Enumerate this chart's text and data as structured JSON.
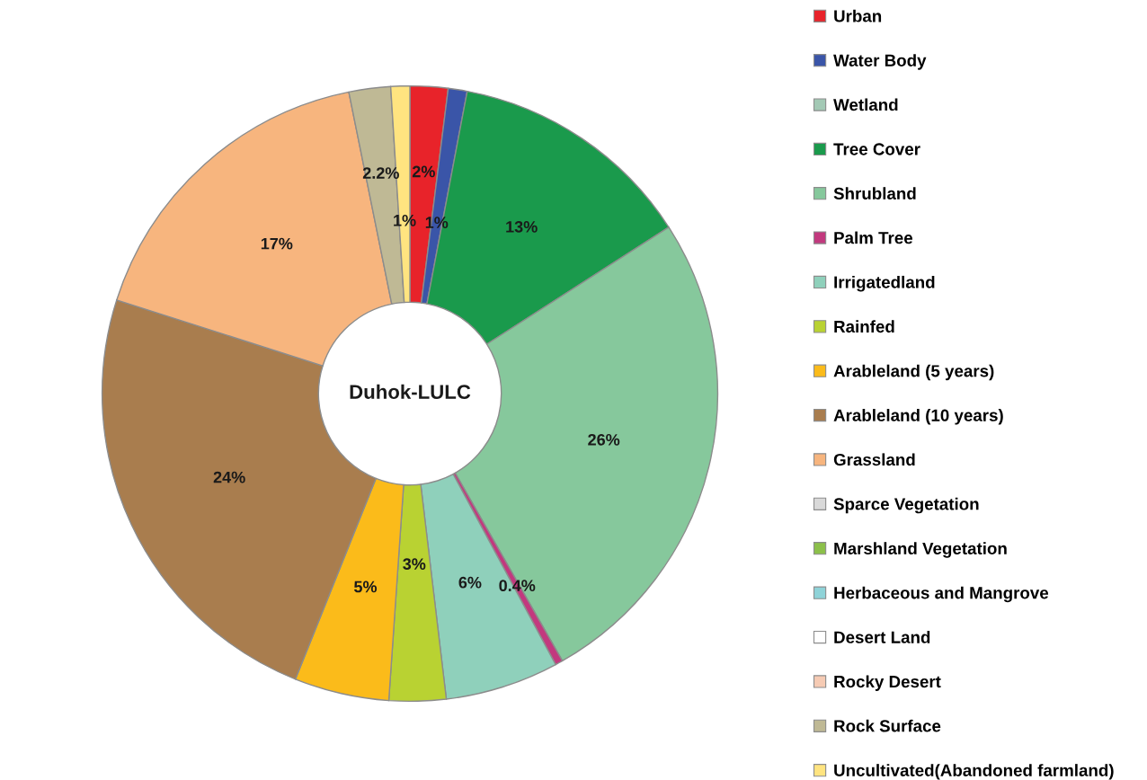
{
  "chart_data": {
    "type": "donut",
    "title": "Duhok-LULC",
    "categories": [
      "Urban",
      "Water Body",
      "Wetland",
      "Tree Cover",
      "Shrubland",
      "Palm Tree",
      "Irrigatedland",
      "Rainfed",
      "Arableland (5 years)",
      "Arableland (10 years)",
      "Grassland",
      "Sparce Vegetation",
      "Marshland Vegetation",
      "Herbaceous and Mangrove",
      "Desert Land",
      "Rocky Desert",
      "Rock Surface",
      "Uncultivated(Abandoned farmland)"
    ],
    "values": [
      2,
      1,
      null,
      13,
      26,
      0.4,
      6,
      3,
      5,
      24,
      17,
      null,
      null,
      null,
      null,
      null,
      2.2,
      1
    ],
    "value_labels": [
      "2%",
      "1%",
      null,
      "13%",
      "26%",
      "0.4%",
      "6%",
      "3%",
      "5%",
      "24%",
      "17%",
      null,
      null,
      null,
      null,
      null,
      "2.2%",
      "1%"
    ],
    "colors": [
      "#e8232a",
      "#3a55a8",
      "#a3c9b5",
      "#1a9a4c",
      "#86c89c",
      "#c2397e",
      "#8fd0bb",
      "#b9d232",
      "#fbbb1a",
      "#a97d4e",
      "#f7b57e",
      "#d9d9d9",
      "#8cc04a",
      "#8fd3d8",
      "#ffffff",
      "#f6cbb4",
      "#bfb995",
      "#ffe480"
    ],
    "legend": "right"
  }
}
